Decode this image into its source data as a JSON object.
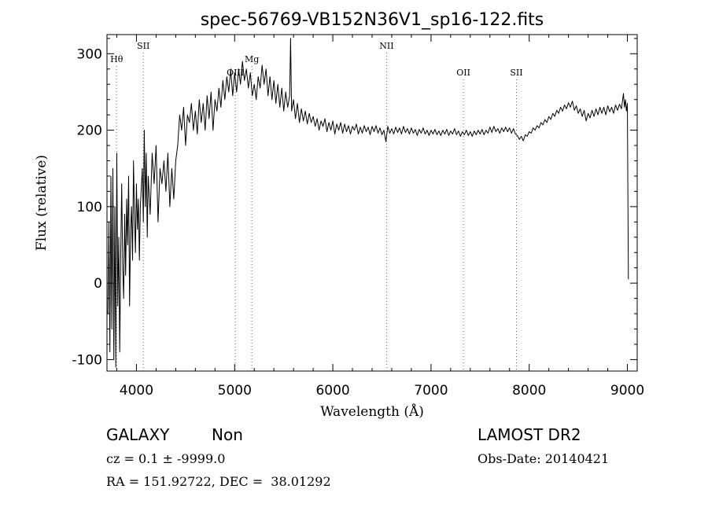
{
  "chart_data": {
    "type": "line",
    "title": "spec-56769-VB152N36V1_sp16-122.fits",
    "xlabel": "Wavelength (Å)",
    "ylabel": "Flux (relative)",
    "xlim": [
      3700,
      9100
    ],
    "ylim": [
      -115,
      325
    ],
    "x_ticks": [
      4000,
      5000,
      6000,
      7000,
      8000,
      9000
    ],
    "y_ticks": [
      -100,
      0,
      100,
      200,
      300
    ],
    "grid": false,
    "line_color": "#000000",
    "marker_color": "#666666",
    "series": [
      {
        "values": [
          [
            3710,
            -40
          ],
          [
            3720,
            80
          ],
          [
            3730,
            -90
          ],
          [
            3740,
            140
          ],
          [
            3750,
            -60
          ],
          [
            3760,
            150
          ],
          [
            3770,
            -100
          ],
          [
            3780,
            100
          ],
          [
            3790,
            -110
          ],
          [
            3800,
            170
          ],
          [
            3810,
            -30
          ],
          [
            3820,
            60
          ],
          [
            3830,
            -90
          ],
          [
            3840,
            40
          ],
          [
            3850,
            130
          ],
          [
            3860,
            20
          ],
          [
            3870,
            -20
          ],
          [
            3880,
            90
          ],
          [
            3890,
            10
          ],
          [
            3900,
            110
          ],
          [
            3910,
            50
          ],
          [
            3920,
            140
          ],
          [
            3930,
            -30
          ],
          [
            3940,
            70
          ],
          [
            3950,
            100
          ],
          [
            3960,
            30
          ],
          [
            3970,
            160
          ],
          [
            3980,
            90
          ],
          [
            3990,
            40
          ],
          [
            4000,
            130
          ],
          [
            4010,
            70
          ],
          [
            4020,
            110
          ],
          [
            4030,
            30
          ],
          [
            4040,
            100
          ],
          [
            4060,
            150
          ],
          [
            4070,
            80
          ],
          [
            4080,
            200
          ],
          [
            4090,
            100
          ],
          [
            4100,
            170
          ],
          [
            4110,
            60
          ],
          [
            4120,
            140
          ],
          [
            4140,
            90
          ],
          [
            4160,
            170
          ],
          [
            4180,
            130
          ],
          [
            4200,
            180
          ],
          [
            4220,
            80
          ],
          [
            4240,
            150
          ],
          [
            4260,
            130
          ],
          [
            4280,
            160
          ],
          [
            4300,
            120
          ],
          [
            4320,
            170
          ],
          [
            4340,
            100
          ],
          [
            4360,
            150
          ],
          [
            4380,
            110
          ],
          [
            4400,
            160
          ],
          [
            4420,
            180
          ],
          [
            4440,
            220
          ],
          [
            4460,
            200
          ],
          [
            4480,
            230
          ],
          [
            4500,
            180
          ],
          [
            4520,
            220
          ],
          [
            4540,
            210
          ],
          [
            4560,
            235
          ],
          [
            4580,
            200
          ],
          [
            4600,
            225
          ],
          [
            4620,
            195
          ],
          [
            4640,
            240
          ],
          [
            4660,
            210
          ],
          [
            4680,
            235
          ],
          [
            4700,
            200
          ],
          [
            4720,
            245
          ],
          [
            4740,
            215
          ],
          [
            4760,
            250
          ],
          [
            4780,
            200
          ],
          [
            4800,
            240
          ],
          [
            4820,
            225
          ],
          [
            4840,
            255
          ],
          [
            4860,
            230
          ],
          [
            4880,
            265
          ],
          [
            4900,
            240
          ],
          [
            4920,
            270
          ],
          [
            4940,
            250
          ],
          [
            4960,
            280
          ],
          [
            4980,
            245
          ],
          [
            5000,
            275
          ],
          [
            5020,
            250
          ],
          [
            5040,
            280
          ],
          [
            5060,
            260
          ],
          [
            5080,
            290
          ],
          [
            5100,
            265
          ],
          [
            5120,
            280
          ],
          [
            5140,
            255
          ],
          [
            5160,
            275
          ],
          [
            5180,
            245
          ],
          [
            5200,
            260
          ],
          [
            5220,
            240
          ],
          [
            5240,
            270
          ],
          [
            5260,
            255
          ],
          [
            5280,
            285
          ],
          [
            5300,
            260
          ],
          [
            5320,
            280
          ],
          [
            5340,
            245
          ],
          [
            5360,
            270
          ],
          [
            5380,
            240
          ],
          [
            5400,
            265
          ],
          [
            5420,
            235
          ],
          [
            5440,
            260
          ],
          [
            5460,
            230
          ],
          [
            5480,
            255
          ],
          [
            5500,
            225
          ],
          [
            5520,
            250
          ],
          [
            5540,
            230
          ],
          [
            5560,
            245
          ],
          [
            5570,
            320
          ],
          [
            5580,
            225
          ],
          [
            5600,
            240
          ],
          [
            5620,
            215
          ],
          [
            5640,
            235
          ],
          [
            5660,
            210
          ],
          [
            5680,
            228
          ],
          [
            5700,
            212
          ],
          [
            5720,
            225
          ],
          [
            5740,
            208
          ],
          [
            5760,
            222
          ],
          [
            5780,
            210
          ],
          [
            5800,
            218
          ],
          [
            5820,
            205
          ],
          [
            5840,
            215
          ],
          [
            5860,
            200
          ],
          [
            5880,
            212
          ],
          [
            5900,
            205
          ],
          [
            5920,
            215
          ],
          [
            5940,
            198
          ],
          [
            5960,
            210
          ],
          [
            5980,
            200
          ],
          [
            6000,
            212
          ],
          [
            6020,
            195
          ],
          [
            6040,
            208
          ],
          [
            6060,
            200
          ],
          [
            6080,
            210
          ],
          [
            6100,
            196
          ],
          [
            6120,
            208
          ],
          [
            6140,
            198
          ],
          [
            6160,
            206
          ],
          [
            6180,
            195
          ],
          [
            6200,
            205
          ],
          [
            6220,
            200
          ],
          [
            6240,
            208
          ],
          [
            6260,
            195
          ],
          [
            6280,
            204
          ],
          [
            6300,
            196
          ],
          [
            6320,
            206
          ],
          [
            6340,
            198
          ],
          [
            6360,
            204
          ],
          [
            6380,
            194
          ],
          [
            6400,
            205
          ],
          [
            6420,
            198
          ],
          [
            6440,
            206
          ],
          [
            6460,
            196
          ],
          [
            6480,
            203
          ],
          [
            6500,
            194
          ],
          [
            6520,
            200
          ],
          [
            6540,
            185
          ],
          [
            6560,
            205
          ],
          [
            6580,
            196
          ],
          [
            6600,
            202
          ],
          [
            6620,
            195
          ],
          [
            6640,
            204
          ],
          [
            6660,
            197
          ],
          [
            6680,
            203
          ],
          [
            6700,
            195
          ],
          [
            6720,
            205
          ],
          [
            6740,
            197
          ],
          [
            6760,
            202
          ],
          [
            6780,
            195
          ],
          [
            6800,
            203
          ],
          [
            6820,
            196
          ],
          [
            6840,
            201
          ],
          [
            6860,
            193
          ],
          [
            6880,
            201
          ],
          [
            6900,
            196
          ],
          [
            6920,
            203
          ],
          [
            6940,
            195
          ],
          [
            6960,
            200
          ],
          [
            6980,
            193
          ],
          [
            7000,
            200
          ],
          [
            7020,
            195
          ],
          [
            7040,
            201
          ],
          [
            7060,
            194
          ],
          [
            7080,
            199
          ],
          [
            7100,
            193
          ],
          [
            7120,
            200
          ],
          [
            7140,
            195
          ],
          [
            7160,
            201
          ],
          [
            7180,
            193
          ],
          [
            7200,
            199
          ],
          [
            7220,
            195
          ],
          [
            7240,
            202
          ],
          [
            7260,
            194
          ],
          [
            7280,
            199
          ],
          [
            7300,
            192
          ],
          [
            7320,
            198
          ],
          [
            7340,
            194
          ],
          [
            7360,
            200
          ],
          [
            7380,
            193
          ],
          [
            7400,
            198
          ],
          [
            7420,
            192
          ],
          [
            7440,
            199
          ],
          [
            7460,
            194
          ],
          [
            7480,
            200
          ],
          [
            7500,
            195
          ],
          [
            7520,
            201
          ],
          [
            7540,
            194
          ],
          [
            7560,
            200
          ],
          [
            7580,
            196
          ],
          [
            7600,
            204
          ],
          [
            7620,
            197
          ],
          [
            7640,
            205
          ],
          [
            7660,
            198
          ],
          [
            7680,
            202
          ],
          [
            7700,
            196
          ],
          [
            7720,
            203
          ],
          [
            7740,
            198
          ],
          [
            7760,
            204
          ],
          [
            7780,
            198
          ],
          [
            7800,
            203
          ],
          [
            7820,
            196
          ],
          [
            7840,
            202
          ],
          [
            7860,
            195
          ],
          [
            7880,
            193
          ],
          [
            7900,
            188
          ],
          [
            7920,
            192
          ],
          [
            7940,
            186
          ],
          [
            7960,
            194
          ],
          [
            7980,
            192
          ],
          [
            8000,
            198
          ],
          [
            8020,
            196
          ],
          [
            8040,
            203
          ],
          [
            8060,
            200
          ],
          [
            8080,
            206
          ],
          [
            8100,
            203
          ],
          [
            8120,
            210
          ],
          [
            8140,
            207
          ],
          [
            8160,
            214
          ],
          [
            8180,
            210
          ],
          [
            8200,
            218
          ],
          [
            8220,
            214
          ],
          [
            8240,
            222
          ],
          [
            8260,
            218
          ],
          [
            8280,
            226
          ],
          [
            8300,
            222
          ],
          [
            8320,
            230
          ],
          [
            8340,
            225
          ],
          [
            8360,
            233
          ],
          [
            8380,
            228
          ],
          [
            8400,
            236
          ],
          [
            8420,
            230
          ],
          [
            8440,
            238
          ],
          [
            8460,
            226
          ],
          [
            8480,
            232
          ],
          [
            8500,
            222
          ],
          [
            8520,
            228
          ],
          [
            8540,
            218
          ],
          [
            8560,
            226
          ],
          [
            8580,
            212
          ],
          [
            8600,
            222
          ],
          [
            8620,
            216
          ],
          [
            8640,
            226
          ],
          [
            8660,
            218
          ],
          [
            8680,
            228
          ],
          [
            8700,
            220
          ],
          [
            8720,
            230
          ],
          [
            8740,
            222
          ],
          [
            8760,
            230
          ],
          [
            8780,
            220
          ],
          [
            8800,
            232
          ],
          [
            8820,
            224
          ],
          [
            8840,
            230
          ],
          [
            8860,
            222
          ],
          [
            8880,
            233
          ],
          [
            8900,
            226
          ],
          [
            8920,
            234
          ],
          [
            8940,
            228
          ],
          [
            8960,
            248
          ],
          [
            8970,
            230
          ],
          [
            8980,
            240
          ],
          [
            8990,
            225
          ],
          [
            9000,
            235
          ],
          [
            9010,
            5
          ]
        ]
      }
    ],
    "line_markers": [
      {
        "label": "Hθ",
        "wavelength": 3798,
        "level": "upper"
      },
      {
        "label": "SII",
        "wavelength": 4070,
        "level": "top"
      },
      {
        "label": "OIII",
        "wavelength": 5007,
        "level": "middle"
      },
      {
        "label": "Mg",
        "wavelength": 5175,
        "level": "upper"
      },
      {
        "label": "NII",
        "wavelength": 6548,
        "level": "top"
      },
      {
        "label": "OII",
        "wavelength": 7330,
        "level": "middle"
      },
      {
        "label": "SII",
        "wavelength": 7870,
        "level": "middle"
      }
    ]
  },
  "info": {
    "object_class": "GALAXY",
    "subclass": "Non",
    "survey": "LAMOST DR2",
    "cz": "cz = 0.1 ± -9999.0",
    "obs_date": "Obs-Date: 20140421",
    "coords": "RA = 151.92722, DEC =  38.01292"
  }
}
